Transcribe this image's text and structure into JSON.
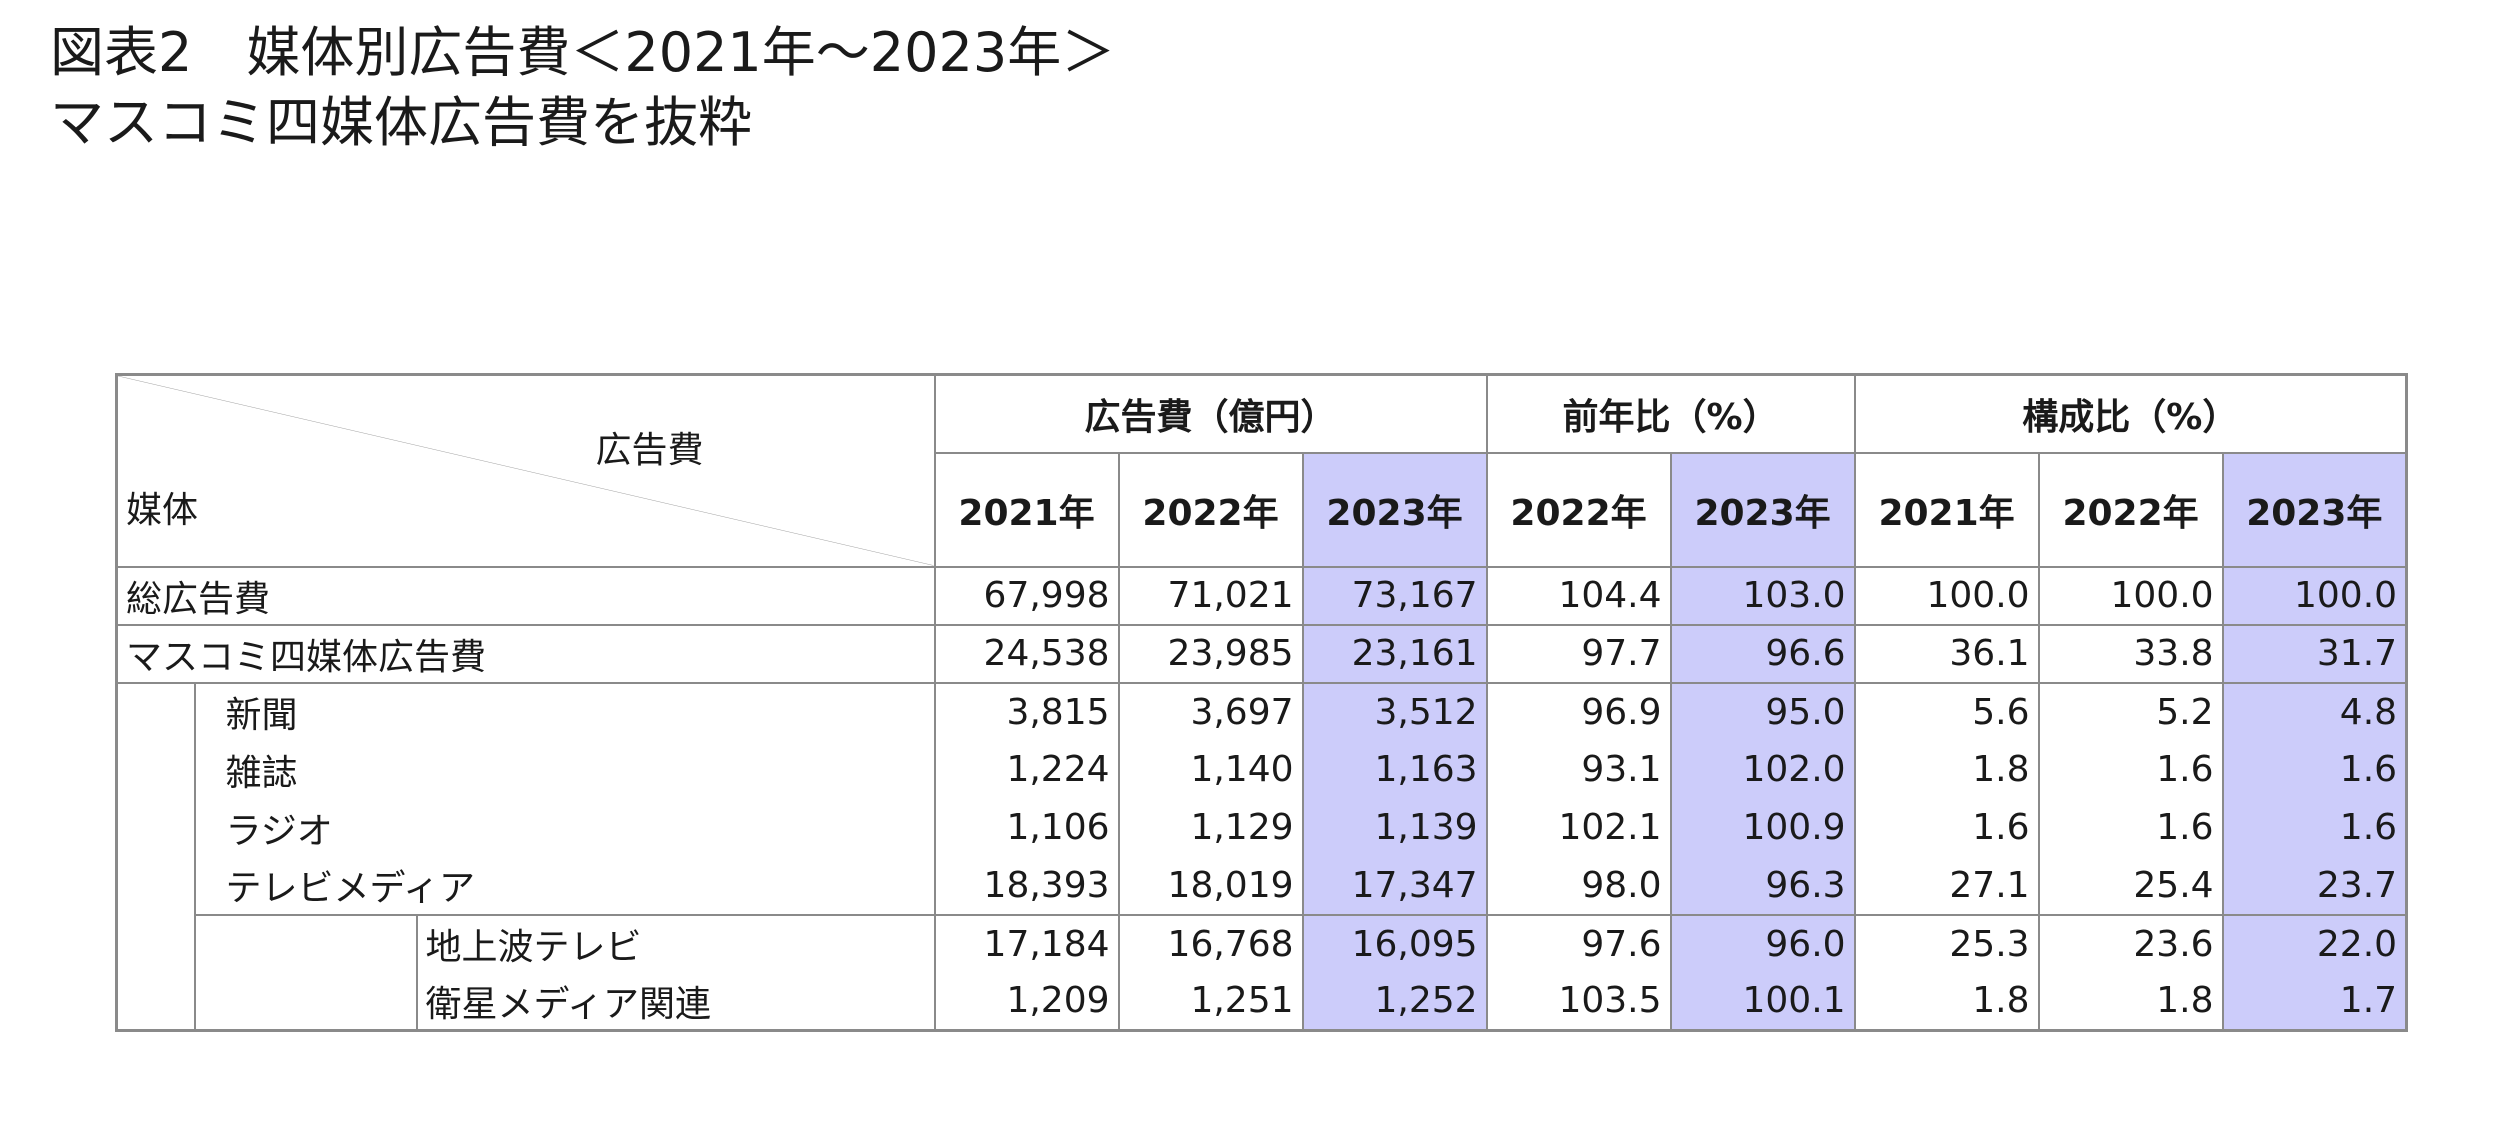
{
  "title": {
    "line1": "図表2　媒体別広告費＜2021年～2023年＞",
    "line2": "マスコミ四媒体広告費を抜粋"
  },
  "table": {
    "corner": {
      "column_label": "広告費",
      "row_label": "媒体"
    },
    "groups": {
      "cost": "広告費（億円）",
      "yoy": "前年比（%）",
      "share": "構成比（%）"
    },
    "years": {
      "cost": [
        "2021年",
        "2022年",
        "2023年"
      ],
      "yoy": [
        "2022年",
        "2023年"
      ],
      "share": [
        "2021年",
        "2022年",
        "2023年"
      ]
    },
    "rows": [
      {
        "label": "総広告費",
        "level": 0,
        "values": [
          "67,998",
          "71,021",
          "73,167",
          "104.4",
          "103.0",
          "100.0",
          "100.0",
          "100.0"
        ]
      },
      {
        "label": "マスコミ四媒体広告費",
        "level": 0,
        "values": [
          "24,538",
          "23,985",
          "23,161",
          "97.7",
          "96.6",
          "36.1",
          "33.8",
          "31.7"
        ]
      },
      {
        "label": "新聞",
        "level": 1,
        "values": [
          "3,815",
          "3,697",
          "3,512",
          "96.9",
          "95.0",
          "5.6",
          "5.2",
          "4.8"
        ]
      },
      {
        "label": "雑誌",
        "level": 1,
        "values": [
          "1,224",
          "1,140",
          "1,163",
          "93.1",
          "102.0",
          "1.8",
          "1.6",
          "1.6"
        ]
      },
      {
        "label": "ラジオ",
        "level": 1,
        "values": [
          "1,106",
          "1,129",
          "1,139",
          "102.1",
          "100.9",
          "1.6",
          "1.6",
          "1.6"
        ]
      },
      {
        "label": "テレビメディア",
        "level": 1,
        "values": [
          "18,393",
          "18,019",
          "17,347",
          "98.0",
          "96.3",
          "27.1",
          "25.4",
          "23.7"
        ]
      },
      {
        "label": "地上波テレビ",
        "level": 2,
        "values": [
          "17,184",
          "16,768",
          "16,095",
          "97.6",
          "96.0",
          "25.3",
          "23.6",
          "22.0"
        ]
      },
      {
        "label": "衛星メディア関連",
        "level": 2,
        "values": [
          "1,209",
          "1,251",
          "1,252",
          "103.5",
          "100.1",
          "1.8",
          "1.8",
          "1.7"
        ]
      }
    ]
  },
  "colors": {
    "highlight": "#ccccfa",
    "border": "#8a8a8a"
  }
}
